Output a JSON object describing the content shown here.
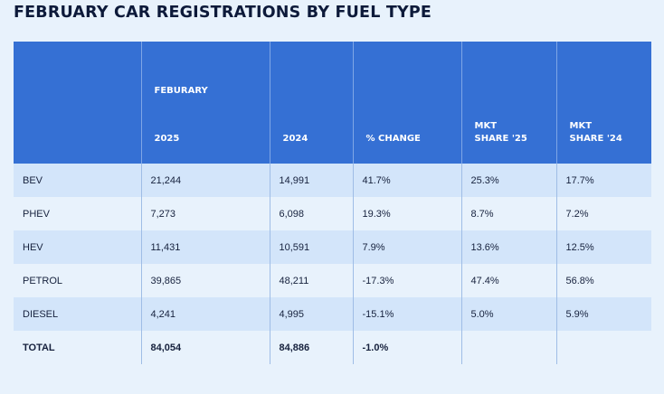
{
  "title": "FEBRUARY CAR REGISTRATIONS BY FUEL TYPE",
  "header": {
    "col0": "",
    "col1_top": "FEBURARY",
    "col1": "2025",
    "col2": "2024",
    "col3": "% CHANGE",
    "col4_line1": "MKT",
    "col4_line2": "SHARE '25",
    "col5_line1": "MKT",
    "col5_line2": "SHARE '24"
  },
  "rows": [
    {
      "fuel": "BEV",
      "y2025": "21,244",
      "y2024": "14,991",
      "change": "41.7%",
      "share25": "25.3%",
      "share24": "17.7%"
    },
    {
      "fuel": "PHEV",
      "y2025": "7,273",
      "y2024": "6,098",
      "change": "19.3%",
      "share25": "8.7%",
      "share24": "7.2%"
    },
    {
      "fuel": "HEV",
      "y2025": "11,431",
      "y2024": "10,591",
      "change": "7.9%",
      "share25": "13.6%",
      "share24": "12.5%"
    },
    {
      "fuel": "PETROL",
      "y2025": "39,865",
      "y2024": "48,211",
      "change": "-17.3%",
      "share25": "47.4%",
      "share24": "56.8%"
    },
    {
      "fuel": "DIESEL",
      "y2025": "4,241",
      "y2024": "4,995",
      "change": "-15.1%",
      "share25": "5.0%",
      "share24": "5.9%"
    },
    {
      "fuel": "TOTAL",
      "y2025": "84,054",
      "y2024": "84,886",
      "change": "-1.0%",
      "share25": "",
      "share24": ""
    }
  ]
}
